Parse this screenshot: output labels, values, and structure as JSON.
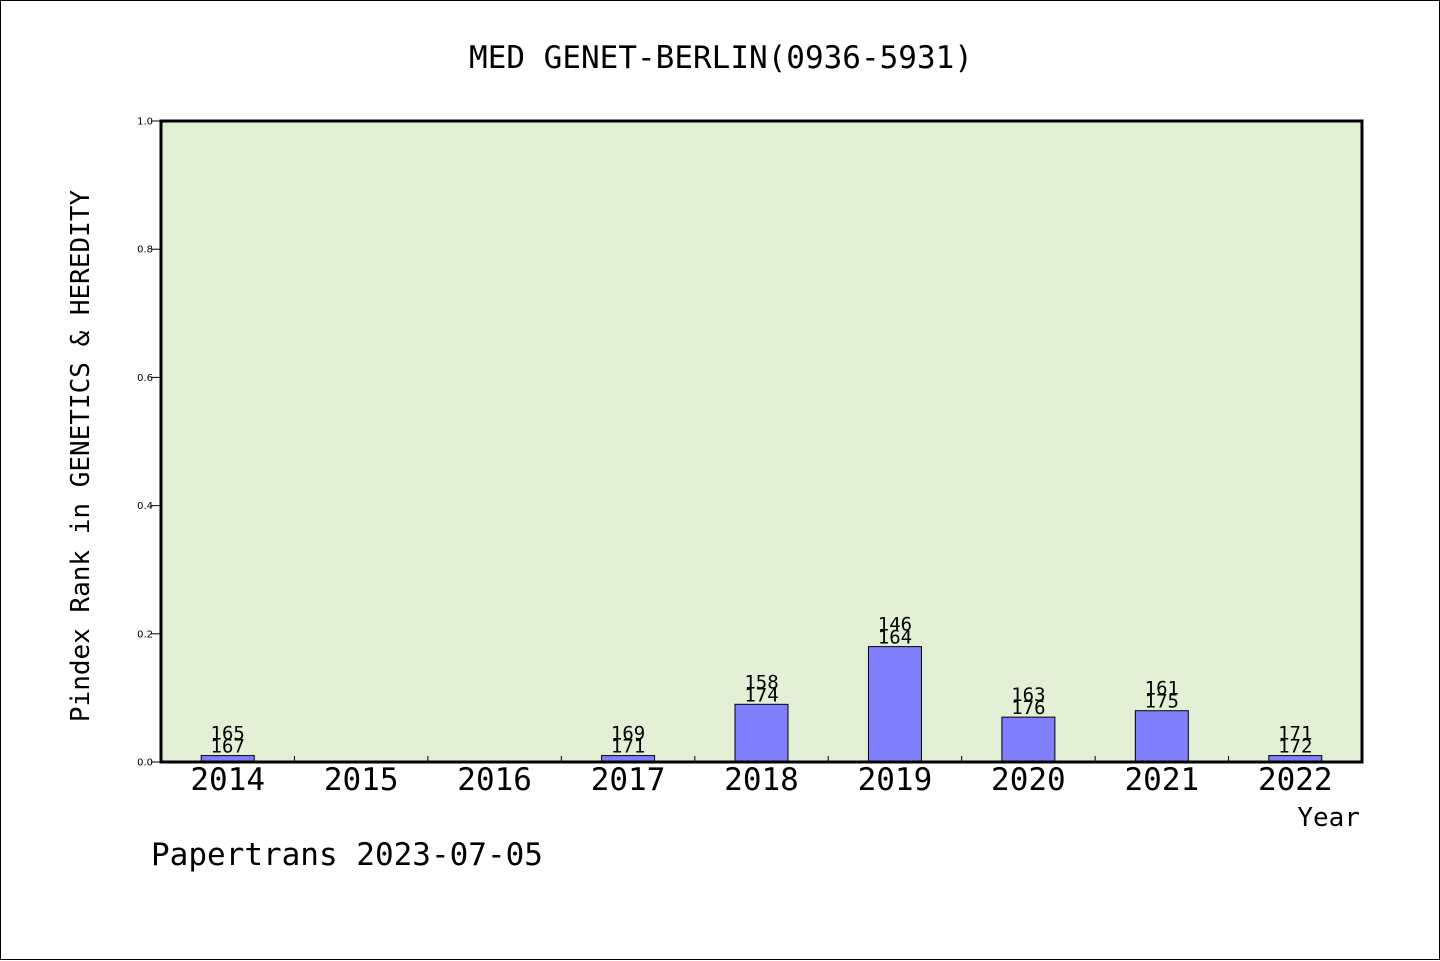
{
  "footer_text": "Papertrans 2023-07-05",
  "colors": {
    "plot_background": "#e2f0d6",
    "bar_fill": "#8080ff",
    "bar_stroke": "#000000"
  },
  "chart_data": {
    "type": "bar",
    "title": "MED GENET-BERLIN(0936-5931)",
    "xlabel": "Year",
    "ylabel": "Pindex Rank in GENETICS & HEREDITY",
    "ylim": [
      0,
      1.0
    ],
    "yticks": [
      "0.0",
      "0.2",
      "0.4",
      "0.6",
      "0.8",
      "1.0"
    ],
    "grid": false,
    "legend": "none",
    "categories": [
      "2014",
      "2015",
      "2016",
      "2017",
      "2018",
      "2019",
      "2020",
      "2021",
      "2022"
    ],
    "values": [
      0.01,
      null,
      null,
      0.01,
      0.09,
      0.18,
      0.07,
      0.08,
      0.01
    ],
    "labels_top": [
      "165",
      null,
      null,
      "169",
      "158",
      "146",
      "163",
      "161",
      "171"
    ],
    "labels_bottom": [
      "167",
      null,
      null,
      "171",
      "174",
      "164",
      "176",
      "175",
      "172"
    ]
  }
}
